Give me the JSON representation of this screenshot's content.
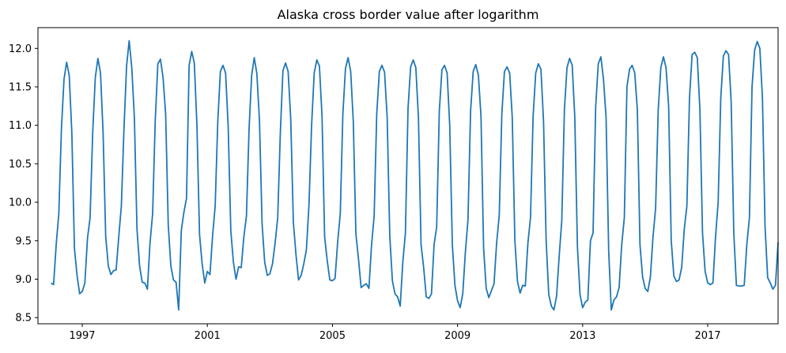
{
  "chart_data": {
    "type": "line",
    "title": "Alaska cross border value after logarithm",
    "xlabel": "",
    "ylabel": "",
    "x_axis": {
      "type": "date",
      "range": [
        "1995-08-01",
        "2019-04-01"
      ],
      "ticks": [
        "1997",
        "2001",
        "2005",
        "2009",
        "2013",
        "2017"
      ]
    },
    "y_axis": {
      "range": [
        8.42,
        12.27
      ],
      "ticks": [
        "8.5",
        "9.0",
        "9.5",
        "10.0",
        "10.5",
        "11.0",
        "11.5",
        "12.0"
      ]
    },
    "grid": false,
    "legend": "none",
    "series": [
      {
        "color": "#1f77b4",
        "start": "1996-01",
        "frequency": "monthly",
        "values": [
          8.95,
          8.93,
          9.45,
          9.85,
          10.95,
          11.6,
          11.82,
          11.65,
          10.9,
          9.4,
          9.05,
          8.81,
          8.84,
          8.95,
          9.53,
          9.8,
          10.9,
          11.62,
          11.87,
          11.68,
          10.9,
          9.55,
          9.17,
          9.06,
          9.11,
          9.12,
          9.55,
          9.95,
          10.95,
          11.77,
          12.1,
          11.75,
          11.1,
          9.65,
          9.17,
          8.96,
          8.95,
          8.87,
          9.47,
          9.85,
          11.06,
          11.8,
          11.86,
          11.62,
          11.15,
          9.7,
          9.17,
          8.99,
          8.96,
          8.6,
          9.63,
          9.87,
          10.05,
          11.78,
          11.96,
          11.81,
          11.0,
          9.58,
          9.2,
          8.95,
          9.1,
          9.06,
          9.56,
          9.95,
          11.05,
          11.7,
          11.78,
          11.68,
          10.98,
          9.63,
          9.22,
          9.0,
          9.16,
          9.15,
          9.55,
          9.82,
          10.95,
          11.65,
          11.88,
          11.67,
          11.06,
          9.72,
          9.22,
          9.05,
          9.07,
          9.2,
          9.47,
          9.8,
          10.9,
          11.71,
          11.81,
          11.7,
          11.08,
          9.74,
          9.32,
          8.99,
          9.05,
          9.2,
          9.38,
          9.97,
          11.0,
          11.68,
          11.85,
          11.77,
          11.12,
          9.55,
          9.24,
          8.99,
          8.98,
          9.01,
          9.48,
          9.85,
          11.15,
          11.74,
          11.88,
          11.7,
          11.05,
          9.59,
          9.26,
          8.89,
          8.92,
          8.94,
          8.88,
          9.44,
          9.82,
          11.15,
          11.7,
          11.78,
          11.69,
          11.1,
          9.56,
          8.98,
          8.81,
          8.77,
          8.65,
          9.22,
          9.6,
          11.22,
          11.76,
          11.85,
          11.75,
          11.1,
          9.45,
          9.15,
          8.77,
          8.75,
          8.81,
          9.45,
          9.68,
          11.18,
          11.72,
          11.78,
          11.68,
          11.0,
          9.45,
          8.92,
          8.72,
          8.63,
          8.81,
          9.35,
          9.77,
          11.18,
          11.7,
          11.79,
          11.65,
          11.12,
          9.4,
          8.88,
          8.76,
          8.85,
          8.94,
          9.47,
          9.83,
          11.15,
          11.7,
          11.76,
          11.68,
          11.1,
          9.5,
          8.97,
          8.82,
          8.92,
          8.91,
          9.47,
          9.8,
          11.12,
          11.68,
          11.8,
          11.73,
          11.05,
          9.5,
          8.8,
          8.65,
          8.6,
          8.78,
          9.3,
          9.76,
          11.2,
          11.75,
          11.87,
          11.78,
          11.1,
          9.42,
          8.8,
          8.63,
          8.7,
          8.73,
          9.5,
          9.6,
          11.24,
          11.8,
          11.89,
          11.6,
          11.1,
          9.36,
          8.6,
          8.73,
          8.77,
          8.89,
          9.45,
          9.8,
          11.5,
          11.73,
          11.78,
          11.68,
          11.2,
          9.45,
          9.03,
          8.88,
          8.84,
          9.03,
          9.55,
          9.92,
          11.2,
          11.75,
          11.89,
          11.75,
          11.25,
          9.5,
          9.04,
          8.97,
          8.99,
          9.15,
          9.65,
          9.95,
          11.35,
          11.92,
          11.95,
          11.88,
          11.2,
          9.6,
          9.1,
          8.95,
          8.93,
          8.95,
          9.55,
          10.0,
          11.35,
          11.9,
          11.97,
          11.92,
          11.3,
          9.6,
          8.92,
          8.91,
          8.91,
          8.92,
          9.45,
          9.8,
          11.5,
          11.98,
          12.09,
          12.0,
          11.35,
          9.68,
          9.02,
          8.95,
          8.87,
          8.92,
          9.48
        ]
      }
    ]
  }
}
